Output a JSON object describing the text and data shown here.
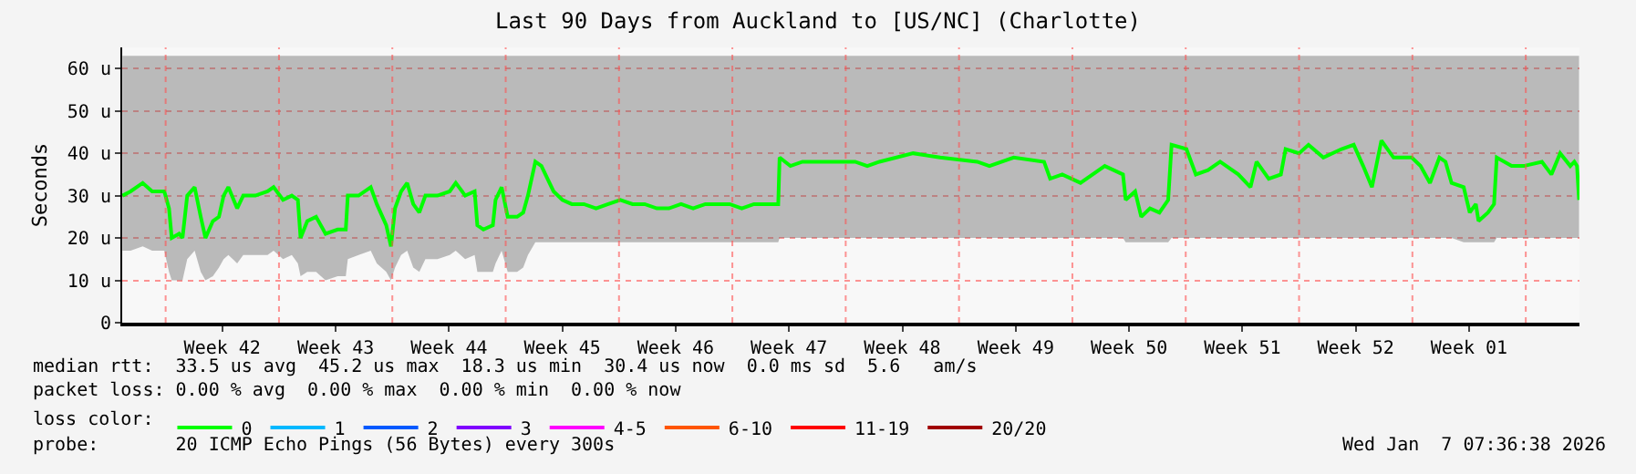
{
  "chart_data": {
    "type": "line",
    "title": "Last 90 Days from Auckland to [US/NC] (Charlotte)",
    "ylabel": "Seconds",
    "xlim": [
      "2025-10-09T07:36",
      "2026-01-07T07:36"
    ],
    "xticks": [
      {
        "value": "2025-10-12",
        "label": null
      },
      {
        "value": "2025-10-15T12:00",
        "label": "Week 42"
      },
      {
        "value": "2025-10-19",
        "label": null
      },
      {
        "value": "2025-10-22T12:00",
        "label": "Week 43"
      },
      {
        "value": "2025-10-26",
        "label": null
      },
      {
        "value": "2025-10-29T12:00",
        "label": "Week 44"
      },
      {
        "value": "2025-11-02",
        "label": null
      },
      {
        "value": "2025-11-05T12:00",
        "label": "Week 45"
      },
      {
        "value": "2025-11-09",
        "label": null
      },
      {
        "value": "2025-11-12T12:00",
        "label": "Week 46"
      },
      {
        "value": "2025-11-16",
        "label": null
      },
      {
        "value": "2025-11-19T12:00",
        "label": "Week 47"
      },
      {
        "value": "2025-11-23",
        "label": null
      },
      {
        "value": "2025-11-26T12:00",
        "label": "Week 48"
      },
      {
        "value": "2025-11-30",
        "label": null
      },
      {
        "value": "2025-12-03T12:00",
        "label": "Week 49"
      },
      {
        "value": "2025-12-07",
        "label": null
      },
      {
        "value": "2025-12-10T12:00",
        "label": "Week 50"
      },
      {
        "value": "2025-12-14",
        "label": null
      },
      {
        "value": "2025-12-17T12:00",
        "label": "Week 51"
      },
      {
        "value": "2025-12-21",
        "label": null
      },
      {
        "value": "2025-12-24T12:00",
        "label": "Week 52"
      },
      {
        "value": "2025-12-28",
        "label": null
      },
      {
        "value": "2025-12-31T12:00",
        "label": "Week 01"
      },
      {
        "value": "2026-01-04",
        "label": null
      }
    ],
    "ylim": [
      0,
      65
    ],
    "yticks": [
      0,
      {
        "value": 10,
        "label": "10 u"
      },
      {
        "value": 20,
        "label": "20 u"
      },
      {
        "value": 30,
        "label": "30 u"
      },
      {
        "value": 40,
        "label": "40 u"
      },
      {
        "value": 50,
        "label": "50 u"
      },
      {
        "value": 60,
        "label": "60 u"
      }
    ],
    "grid": true,
    "legend": "bottom",
    "legend_title": "loss color:",
    "marker": "none",
    "line_style": "solid",
    "x": [
      "2025-10-09T08:00",
      "2025-10-09T20:00",
      "2025-10-10T14:00",
      "2025-10-11T04:00",
      "2025-10-11T22:00",
      "2025-10-12T05:00",
      "2025-10-12T09:00",
      "2025-10-12T20:00",
      "2025-10-13T01:00",
      "2025-10-13T08:00",
      "2025-10-13T19:00",
      "2025-10-14T04:00",
      "2025-10-14T11:00",
      "2025-10-14T22:00",
      "2025-10-15T07:00",
      "2025-10-15T14:00",
      "2025-10-15T21:00",
      "2025-10-16T10:00",
      "2025-10-16T19:00",
      "2025-10-17T13:00",
      "2025-10-18T07:00",
      "2025-10-18T16:00",
      "2025-10-19T06:00",
      "2025-10-19T19:00",
      "2025-10-20T04:00",
      "2025-10-20T08:00",
      "2025-10-20T18:00",
      "2025-10-21T07:00",
      "2025-10-21T21:00",
      "2025-10-22T15:00",
      "2025-10-23T03:00",
      "2025-10-23T06:00",
      "2025-10-23T22:00",
      "2025-10-24T16:00",
      "2025-10-25T01:00",
      "2025-10-25T15:00",
      "2025-10-25T22:00",
      "2025-10-26T04:00",
      "2025-10-26T13:00",
      "2025-10-26T22:00",
      "2025-10-27T07:00",
      "2025-10-27T16:00",
      "2025-10-28T01:00",
      "2025-10-28T19:00",
      "2025-10-29T13:00",
      "2025-10-29T22:00",
      "2025-10-30T12:00",
      "2025-10-31T02:00",
      "2025-10-31T06:00",
      "2025-10-31T15:00",
      "2025-11-01T05:00",
      "2025-11-01T09:00",
      "2025-11-01T18:00",
      "2025-11-02T03:00",
      "2025-11-02T17:00",
      "2025-11-03T02:00",
      "2025-11-03T09:00",
      "2025-11-03T20:00",
      "2025-11-04T05:00",
      "2025-11-04T14:00",
      "2025-11-04T23:00",
      "2025-11-05T12:00",
      "2025-11-06T02:00",
      "2025-11-06T20:00",
      "2025-11-07T14:00",
      "2025-11-08T08:00",
      "2025-11-09T02:00",
      "2025-11-09T20:00",
      "2025-11-10T14:00",
      "2025-11-11T08:00",
      "2025-11-12T02:00",
      "2025-11-12T20:00",
      "2025-11-13T14:00",
      "2025-11-14T08:00",
      "2025-11-15T02:00",
      "2025-11-15T20:00",
      "2025-11-16T14:00",
      "2025-11-17T08:00",
      "2025-11-18T02:00",
      "2025-11-18T20:00",
      "2025-11-18T22:00",
      "2025-11-19T14:00",
      "2025-11-20T08:00",
      "2025-11-22T02:00",
      "2025-11-23T14:00",
      "2025-11-24T08:00",
      "2025-11-25T02:00",
      "2025-11-27T04:00",
      "2025-11-28T20:00",
      "2025-12-01T03:00",
      "2025-12-01T21:00",
      "2025-12-03T09:00",
      "2025-12-05T06:00",
      "2025-12-05T15:00",
      "2025-12-06T09:00",
      "2025-12-07T12:00",
      "2025-12-09T00:00",
      "2025-12-10T03:00",
      "2025-12-10T07:00",
      "2025-12-10T21:00",
      "2025-12-11T06:00",
      "2025-12-11T19:00",
      "2025-12-12T09:00",
      "2025-12-12T22:00",
      "2025-12-13T03:00",
      "2025-12-14T01:00",
      "2025-12-14T15:00",
      "2025-12-15T09:00",
      "2025-12-16T03:00",
      "2025-12-17T06:00",
      "2025-12-18T00:00",
      "2025-12-18T09:00",
      "2025-12-19T03:00",
      "2025-12-19T21:00",
      "2025-12-20T04:00",
      "2025-12-21T00:00",
      "2025-12-21T14:00",
      "2025-12-22T12:00",
      "2025-12-23T15:00",
      "2025-12-24T09:00",
      "2025-12-24T23:00",
      "2025-12-25T12:00",
      "2025-12-26T02:00",
      "2025-12-26T20:00",
      "2025-12-27T23:00",
      "2025-12-28T12:00",
      "2025-12-29T02:00",
      "2025-12-29T16:00",
      "2025-12-30T01:00",
      "2025-12-30T10:00",
      "2025-12-31T04:00",
      "2025-12-31T13:00",
      "2025-12-31T22:00",
      "2026-01-01T02:00",
      "2026-01-01T16:00",
      "2026-01-02T01:00",
      "2026-01-02T05:00",
      "2026-01-03T03:00",
      "2026-01-03T21:00",
      "2026-01-05T00:00",
      "2026-01-05T14:00",
      "2026-01-06T03:00",
      "2026-01-06T18:00",
      "2026-01-07T00:00",
      "2026-01-07T04:00",
      "2026-01-07T07:00"
    ],
    "series": [
      {
        "name": "0",
        "color": "#00ff00",
        "values": [
          30,
          31,
          33,
          31,
          31,
          27,
          20,
          21,
          20,
          30,
          32,
          25,
          20,
          24,
          25,
          30,
          32,
          27,
          30,
          30,
          31,
          32,
          29,
          30,
          29,
          20,
          24,
          25,
          21,
          22,
          22,
          30,
          30,
          32,
          28,
          23,
          18,
          27,
          31,
          33,
          28,
          26,
          30,
          30,
          31,
          33,
          30,
          31,
          23,
          22,
          23,
          29,
          32,
          25,
          25,
          26,
          30,
          38,
          37,
          34,
          31,
          29,
          28,
          28,
          27,
          28,
          29,
          28,
          28,
          27,
          27,
          28,
          27,
          28,
          28,
          28,
          27,
          28,
          28,
          28,
          39,
          37,
          38,
          38,
          38,
          37,
          38,
          40,
          39,
          38,
          37,
          39,
          38,
          34,
          35,
          33,
          37,
          35,
          29,
          31,
          25,
          27,
          26,
          29,
          42,
          41,
          35,
          36,
          38,
          35,
          32,
          38,
          34,
          35,
          41,
          40,
          42,
          39,
          41,
          42,
          37,
          32,
          43,
          39,
          39,
          37,
          33,
          39,
          38,
          33,
          32,
          26,
          28,
          24,
          26,
          28,
          39,
          37,
          37,
          38,
          35,
          40,
          37,
          38,
          37,
          29
        ],
        "lower": [
          17,
          17,
          18,
          17,
          17,
          12,
          10,
          10,
          10,
          15,
          17,
          12,
          10,
          11,
          13,
          15,
          16,
          14,
          16,
          16,
          16,
          17,
          15,
          16,
          14,
          11,
          12,
          12,
          10,
          11,
          11,
          15,
          16,
          17,
          14,
          12,
          10,
          13,
          16,
          17,
          13,
          12,
          15,
          15,
          16,
          17,
          15,
          16,
          12,
          12,
          12,
          14,
          17,
          12,
          12,
          13,
          16,
          19,
          19,
          19,
          19,
          19,
          19,
          19,
          19,
          19,
          19,
          19,
          19,
          19,
          19,
          19,
          19,
          19,
          19,
          19,
          19,
          19,
          19,
          19,
          20,
          20,
          20,
          20,
          20,
          20,
          20,
          20,
          20,
          20,
          20,
          20,
          20,
          20,
          20,
          20,
          20,
          20,
          19,
          19,
          19,
          19,
          19,
          19,
          20,
          20,
          20,
          20,
          20,
          20,
          20,
          20,
          20,
          20,
          20,
          20,
          20,
          20,
          20,
          20,
          20,
          20,
          20,
          20,
          20,
          20,
          20,
          20,
          20,
          20,
          19,
          19,
          19,
          19,
          19,
          19,
          20,
          20,
          20,
          20,
          20,
          20,
          20,
          20,
          20,
          20
        ],
        "upper": [
          63,
          63,
          63,
          63,
          63,
          63,
          63,
          63,
          63,
          63,
          63,
          63,
          63,
          63,
          63,
          63,
          63,
          63,
          63,
          63,
          63,
          63,
          63,
          63,
          63,
          63,
          63,
          63,
          63,
          63,
          63,
          63,
          63,
          63,
          63,
          63,
          63,
          63,
          63,
          63,
          63,
          63,
          63,
          63,
          63,
          63,
          63,
          63,
          63,
          63,
          63,
          63,
          63,
          63,
          63,
          63,
          63,
          63,
          63,
          63,
          63,
          63,
          63,
          63,
          63,
          63,
          63,
          63,
          63,
          63,
          63,
          63,
          63,
          63,
          63,
          63,
          63,
          63,
          63,
          63,
          63,
          63,
          63,
          63,
          63,
          63,
          63,
          63,
          63,
          63,
          63,
          63,
          63,
          63,
          63,
          63,
          63,
          63,
          63,
          63,
          63,
          63,
          63,
          63,
          63,
          63,
          63,
          63,
          63,
          63,
          63,
          63,
          63,
          63,
          63,
          63,
          63,
          63,
          63,
          63,
          63,
          63,
          63,
          63,
          63,
          63,
          63,
          63,
          63,
          63,
          63,
          63,
          63,
          63,
          63,
          63,
          63,
          63,
          63,
          63,
          63,
          63,
          63,
          63,
          63,
          63
        ]
      },
      {
        "name": "1",
        "color": "#00b8ff",
        "values": [
          null,
          null,
          null,
          null,
          null,
          null,
          null,
          null,
          null,
          null,
          null,
          null,
          null,
          null,
          null,
          null,
          null,
          null,
          null,
          null,
          null,
          null,
          null,
          null,
          null,
          null,
          null,
          null,
          null,
          null,
          null,
          null,
          null,
          null,
          null,
          null,
          null,
          null,
          null,
          null,
          null,
          null,
          null,
          null,
          null,
          null,
          null,
          null,
          null,
          null,
          null,
          null,
          null,
          null,
          null,
          null,
          null,
          null,
          null,
          null,
          null,
          null,
          null,
          null,
          null,
          null,
          null,
          null,
          null,
          null,
          null,
          null,
          null,
          null,
          null,
          null,
          null,
          null,
          null,
          null,
          null,
          null,
          null,
          null,
          null,
          null,
          null,
          null,
          null,
          null,
          null,
          null,
          null,
          null,
          null,
          null,
          null,
          null,
          null,
          null,
          null,
          null,
          null,
          null,
          null,
          null,
          null,
          null,
          null,
          null,
          null,
          null,
          null,
          null,
          null,
          null,
          null,
          null,
          null,
          null,
          null,
          null,
          null,
          null,
          null,
          null,
          null,
          null,
          null,
          null,
          null,
          null,
          null,
          null,
          null,
          null,
          null,
          null,
          null,
          null,
          null,
          null,
          null,
          null,
          null,
          null
        ]
      },
      {
        "name": "2",
        "color": "#0059ff",
        "values": [
          null,
          null,
          null,
          null,
          null,
          null,
          null,
          null,
          null,
          null,
          null,
          null,
          null,
          null,
          null,
          null,
          null,
          null,
          null,
          null,
          null,
          null,
          null,
          null,
          null,
          null,
          null,
          null,
          null,
          null,
          null,
          null,
          null,
          null,
          null,
          null,
          null,
          null,
          null,
          null,
          null,
          null,
          null,
          null,
          null,
          null,
          null,
          null,
          null,
          null,
          null,
          null,
          null,
          null,
          null,
          null,
          null,
          null,
          null,
          null,
          null,
          null,
          null,
          null,
          null,
          null,
          null,
          null,
          null,
          null,
          null,
          null,
          null,
          null,
          null,
          null,
          null,
          null,
          null,
          null,
          null,
          null,
          null,
          null,
          null,
          null,
          null,
          null,
          null,
          null,
          null,
          null,
          null,
          null,
          null,
          null,
          null,
          null,
          null,
          null,
          null,
          null,
          null,
          null,
          null,
          null,
          null,
          null,
          null,
          null,
          null,
          null,
          null,
          null,
          null,
          null,
          null,
          null,
          null,
          null,
          null,
          null,
          null,
          null,
          null,
          null,
          null,
          null,
          null,
          null,
          null,
          null,
          null,
          null,
          null,
          null,
          null,
          null,
          null,
          null,
          null,
          null,
          null,
          null,
          null,
          null
        ]
      },
      {
        "name": "3",
        "color": "#8000ff",
        "values": [
          null,
          null,
          null,
          null,
          null,
          null,
          null,
          null,
          null,
          null,
          null,
          null,
          null,
          null,
          null,
          null,
          null,
          null,
          null,
          null,
          null,
          null,
          null,
          null,
          null,
          null,
          null,
          null,
          null,
          null,
          null,
          null,
          null,
          null,
          null,
          null,
          null,
          null,
          null,
          null,
          null,
          null,
          null,
          null,
          null,
          null,
          null,
          null,
          null,
          null,
          null,
          null,
          null,
          null,
          null,
          null,
          null,
          null,
          null,
          null,
          null,
          null,
          null,
          null,
          null,
          null,
          null,
          null,
          null,
          null,
          null,
          null,
          null,
          null,
          null,
          null,
          null,
          null,
          null,
          null,
          null,
          null,
          null,
          null,
          null,
          null,
          null,
          null,
          null,
          null,
          null,
          null,
          null,
          null,
          null,
          null,
          null,
          null,
          null,
          null,
          null,
          null,
          null,
          null,
          null,
          null,
          null,
          null,
          null,
          null,
          null,
          null,
          null,
          null,
          null,
          null,
          null,
          null,
          null,
          null,
          null,
          null,
          null,
          null,
          null,
          null,
          null,
          null,
          null,
          null,
          null,
          null,
          null,
          null,
          null,
          null,
          null,
          null,
          null,
          null,
          null,
          null,
          null,
          null,
          null,
          null
        ]
      },
      {
        "name": "4-5",
        "color": "#ff00ff",
        "values": [
          null,
          null,
          null,
          null,
          null,
          null,
          null,
          null,
          null,
          null,
          null,
          null,
          null,
          null,
          null,
          null,
          null,
          null,
          null,
          null,
          null,
          null,
          null,
          null,
          null,
          null,
          null,
          null,
          null,
          null,
          null,
          null,
          null,
          null,
          null,
          null,
          null,
          null,
          null,
          null,
          null,
          null,
          null,
          null,
          null,
          null,
          null,
          null,
          null,
          null,
          null,
          null,
          null,
          null,
          null,
          null,
          null,
          null,
          null,
          null,
          null,
          null,
          null,
          null,
          null,
          null,
          null,
          null,
          null,
          null,
          null,
          null,
          null,
          null,
          null,
          null,
          null,
          null,
          null,
          null,
          null,
          null,
          null,
          null,
          null,
          null,
          null,
          null,
          null,
          null,
          null,
          null,
          null,
          null,
          null,
          null,
          null,
          null,
          null,
          null,
          null,
          null,
          null,
          null,
          null,
          null,
          null,
          null,
          null,
          null,
          null,
          null,
          null,
          null,
          null,
          null,
          null,
          null,
          null,
          null,
          null,
          null,
          null,
          null,
          null,
          null,
          null,
          null,
          null,
          null,
          null,
          null,
          null,
          null,
          null,
          null,
          null,
          null,
          null,
          null,
          null,
          null,
          null,
          null,
          null,
          null
        ]
      },
      {
        "name": "6-10",
        "color": "#ff5500",
        "values": [
          null,
          null,
          null,
          null,
          null,
          null,
          null,
          null,
          null,
          null,
          null,
          null,
          null,
          null,
          null,
          null,
          null,
          null,
          null,
          null,
          null,
          null,
          null,
          null,
          null,
          null,
          null,
          null,
          null,
          null,
          null,
          null,
          null,
          null,
          null,
          null,
          null,
          null,
          null,
          null,
          null,
          null,
          null,
          null,
          null,
          null,
          null,
          null,
          null,
          null,
          null,
          null,
          null,
          null,
          null,
          null,
          null,
          null,
          null,
          null,
          null,
          null,
          null,
          null,
          null,
          null,
          null,
          null,
          null,
          null,
          null,
          null,
          null,
          null,
          null,
          null,
          null,
          null,
          null,
          null,
          null,
          null,
          null,
          null,
          null,
          null,
          null,
          null,
          null,
          null,
          null,
          null,
          null,
          null,
          null,
          null,
          null,
          null,
          null,
          null,
          null,
          null,
          null,
          null,
          null,
          null,
          null,
          null,
          null,
          null,
          null,
          null,
          null,
          null,
          null,
          null,
          null,
          null,
          null,
          null,
          null,
          null,
          null,
          null,
          null,
          null,
          null,
          null,
          null,
          null,
          null,
          null,
          null,
          null,
          null,
          null,
          null,
          null,
          null,
          null,
          null,
          null,
          null,
          null,
          null,
          null
        ]
      },
      {
        "name": "11-19",
        "color": "#ff0000",
        "values": [
          null,
          null,
          null,
          null,
          null,
          null,
          null,
          null,
          null,
          null,
          null,
          null,
          null,
          null,
          null,
          null,
          null,
          null,
          null,
          null,
          null,
          null,
          null,
          null,
          null,
          null,
          null,
          null,
          null,
          null,
          null,
          null,
          null,
          null,
          null,
          null,
          null,
          null,
          null,
          null,
          null,
          null,
          null,
          null,
          null,
          null,
          null,
          null,
          null,
          null,
          null,
          null,
          null,
          null,
          null,
          null,
          null,
          null,
          null,
          null,
          null,
          null,
          null,
          null,
          null,
          null,
          null,
          null,
          null,
          null,
          null,
          null,
          null,
          null,
          null,
          null,
          null,
          null,
          null,
          null,
          null,
          null,
          null,
          null,
          null,
          null,
          null,
          null,
          null,
          null,
          null,
          null,
          null,
          null,
          null,
          null,
          null,
          null,
          null,
          null,
          null,
          null,
          null,
          null,
          null,
          null,
          null,
          null,
          null,
          null,
          null,
          null,
          null,
          null,
          null,
          null,
          null,
          null,
          null,
          null,
          null,
          null,
          null,
          null,
          null,
          null,
          null,
          null,
          null,
          null,
          null,
          null,
          null,
          null,
          null,
          null,
          null,
          null,
          null,
          null,
          null,
          null,
          null,
          null,
          null,
          null
        ]
      },
      {
        "name": "20/20",
        "color": "#a00000",
        "values": [
          null,
          null,
          null,
          null,
          null,
          null,
          null,
          null,
          null,
          null,
          null,
          null,
          null,
          null,
          null,
          null,
          null,
          null,
          null,
          null,
          null,
          null,
          null,
          null,
          null,
          null,
          null,
          null,
          null,
          null,
          null,
          null,
          null,
          null,
          null,
          null,
          null,
          null,
          null,
          null,
          null,
          null,
          null,
          null,
          null,
          null,
          null,
          null,
          null,
          null,
          null,
          null,
          null,
          null,
          null,
          null,
          null,
          null,
          null,
          null,
          null,
          null,
          null,
          null,
          null,
          null,
          null,
          null,
          null,
          null,
          null,
          null,
          null,
          null,
          null,
          null,
          null,
          null,
          null,
          null,
          null,
          null,
          null,
          null,
          null,
          null,
          null,
          null,
          null,
          null,
          null,
          null,
          null,
          null,
          null,
          null,
          null,
          null,
          null,
          null,
          null,
          null,
          null,
          null,
          null,
          null,
          null,
          null,
          null,
          null,
          null,
          null,
          null,
          null,
          null,
          null,
          null,
          null,
          null,
          null,
          null,
          null,
          null,
          null,
          null,
          null,
          null,
          null,
          null,
          null,
          null,
          null,
          null,
          null,
          null,
          null,
          null,
          null,
          null,
          null,
          null,
          null,
          null,
          null,
          null,
          null
        ]
      }
    ],
    "annotations": [
      "median rtt:  33.5 us avg  45.2 us max  18.3 us min  30.4 us now  0.0 ms sd  5.6   am/s",
      "packet loss: 0.00 % avg  0.00 % max  0.00 % min  0.00 % now",
      "probe:       20 ICMP Echo Pings (56 Bytes) every 300s",
      "Wed Jan  7 07:36:38 2026"
    ]
  }
}
